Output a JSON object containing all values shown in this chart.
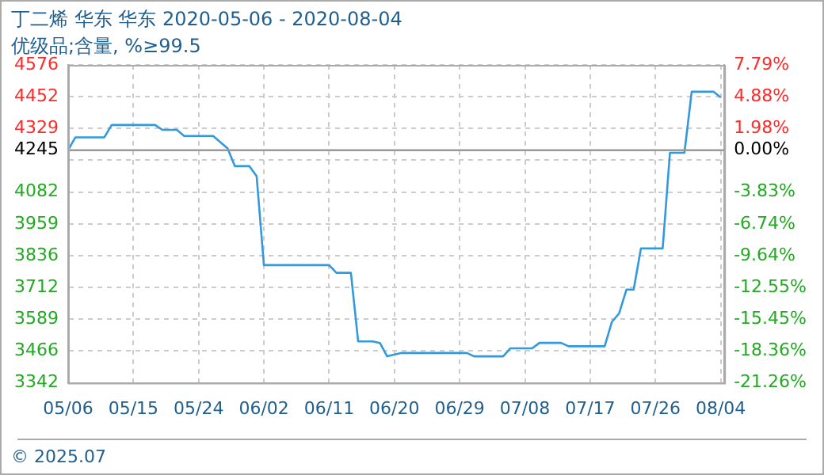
{
  "chart_data": {
    "type": "line",
    "title": "丁二烯 华东 华东 2020-05-06 - 2020-08-04",
    "subtitle": "优级品;含量, %≥99.5",
    "x": [
      "2020-05-06",
      "2020-05-07",
      "2020-05-11",
      "2020-05-12",
      "2020-05-18",
      "2020-05-19",
      "2020-05-21",
      "2020-05-22",
      "2020-05-26",
      "2020-05-28",
      "2020-05-29",
      "2020-05-31",
      "2020-06-01",
      "2020-06-02",
      "2020-06-11",
      "2020-06-12",
      "2020-06-14",
      "2020-06-15",
      "2020-06-17",
      "2020-06-18",
      "2020-06-19",
      "2020-06-21",
      "2020-06-30",
      "2020-07-01",
      "2020-07-05",
      "2020-07-06",
      "2020-07-09",
      "2020-07-10",
      "2020-07-13",
      "2020-07-14",
      "2020-07-19",
      "2020-07-20",
      "2020-07-21",
      "2020-07-22",
      "2020-07-23",
      "2020-07-24",
      "2020-07-27",
      "2020-07-28",
      "2020-07-30",
      "2020-07-31",
      "2020-08-03",
      "2020-08-04"
    ],
    "series": [
      {
        "color": "#3399dd",
        "values": [
          4245,
          4295,
          4295,
          4343,
          4343,
          4324,
          4324,
          4300,
          4300,
          4252,
          4183,
          4183,
          4144,
          3799,
          3799,
          3769,
          3769,
          3503,
          3503,
          3497,
          3445,
          3458,
          3458,
          3445,
          3445,
          3476,
          3476,
          3497,
          3497,
          3484,
          3484,
          3579,
          3612,
          3704,
          3704,
          3864,
          3864,
          4235,
          4235,
          4472,
          4472,
          4450
        ]
      }
    ],
    "xlim": [
      "2020-05-06",
      "2020-08-04T12:00"
    ],
    "xticks": [
      {
        "value": "2020-05-06",
        "label": "05/06"
      },
      {
        "value": "2020-05-15",
        "label": "05/15"
      },
      {
        "value": "2020-05-24",
        "label": "05/24"
      },
      {
        "value": "2020-06-02",
        "label": "06/02"
      },
      {
        "value": "2020-06-11",
        "label": "06/11"
      },
      {
        "value": "2020-06-20",
        "label": "06/20"
      },
      {
        "value": "2020-06-29",
        "label": "06/29"
      },
      {
        "value": "2020-07-08",
        "label": "07/08"
      },
      {
        "value": "2020-07-17",
        "label": "07/17"
      },
      {
        "value": "2020-07-26",
        "label": "07/26"
      },
      {
        "value": "2020-08-04",
        "label": "08/04"
      }
    ],
    "ylim": [
      3342,
      4576
    ],
    "yticks": [
      3342,
      3466,
      3589,
      3712,
      3836,
      3959,
      4082,
      {
        "value": 4206,
        "label": null
      },
      4245,
      4329,
      4452,
      4576
    ],
    "y2lim": [
      -21.26,
      7.79
    ],
    "y2ticks": [
      {
        "value": -21.26,
        "label": "-21.26%"
      },
      {
        "value": -18.36,
        "label": "-18.36%"
      },
      {
        "value": -15.45,
        "label": "-15.45%"
      },
      {
        "value": -12.55,
        "label": "-12.55%"
      },
      {
        "value": -9.64,
        "label": "-9.64%"
      },
      {
        "value": -6.74,
        "label": "-6.74%"
      },
      {
        "value": -3.83,
        "label": "-3.83%"
      },
      {
        "value": 0,
        "label": "0.00%"
      },
      {
        "value": 1.98,
        "label": "1.98%"
      },
      {
        "value": 4.88,
        "label": "4.88%"
      },
      {
        "value": 7.79,
        "label": "7.79%"
      }
    ],
    "ref_lines": [
      {
        "axis": "y",
        "value": 4245,
        "color": "#999999"
      }
    ],
    "grid": true,
    "legend": false,
    "marker": "none",
    "line_style": "solid",
    "annotations": [
      "© 2025.07"
    ]
  }
}
